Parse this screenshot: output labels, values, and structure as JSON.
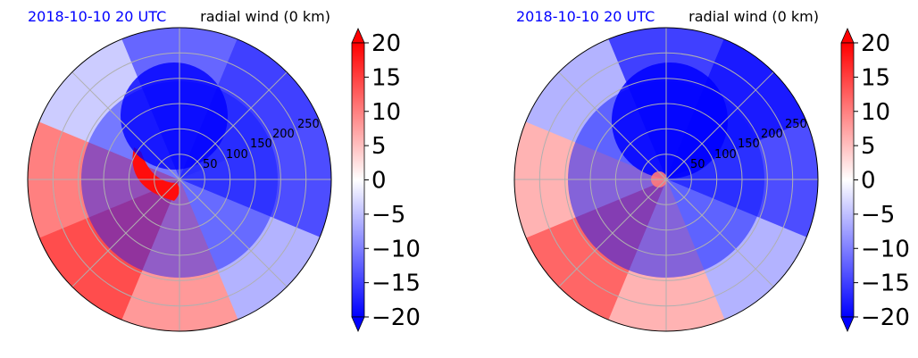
{
  "chart_data": [
    {
      "type": "heatmap",
      "projection": "polar",
      "title_left": "2018-10-10 20 UTC",
      "title_right": "radial wind (0 km)",
      "radial_ticks": [
        "50",
        "100",
        "150",
        "200",
        "250"
      ],
      "radial_tick_values": [
        50,
        100,
        150,
        200,
        250
      ],
      "rlim": [
        0,
        300
      ],
      "angular_grid_deg": [
        0,
        45,
        90,
        135,
        180,
        225,
        270,
        315
      ],
      "grid": true,
      "colormap": "bwr",
      "colorbar": {
        "vmin": -20,
        "vmax": 20,
        "extend": "both",
        "ticks": [
          20,
          15,
          10,
          5,
          0,
          -5,
          -10,
          -15,
          -20
        ],
        "tick_labels": [
          "20",
          "15",
          "10",
          "5",
          "0",
          "−5",
          "−10",
          "−15",
          "−20"
        ]
      },
      "field": {
        "sector_values": [
          {
            "direction": "north",
            "value": -12
          },
          {
            "direction": "north-east",
            "value": -15
          },
          {
            "direction": "east",
            "value": -14
          },
          {
            "direction": "south-east",
            "value": -6
          },
          {
            "direction": "south",
            "value": 8
          },
          {
            "direction": "south-west",
            "value": 14
          },
          {
            "direction": "west",
            "value": 10
          },
          {
            "direction": "north-west",
            "value": -4
          }
        ],
        "features": [
          {
            "name": "inner-positive-arc",
            "value": 20
          },
          {
            "name": "core-negative",
            "value": -20
          }
        ]
      }
    },
    {
      "type": "heatmap",
      "projection": "polar",
      "title_left": "2018-10-10 20 UTC",
      "title_right": "radial wind (0 km)",
      "radial_ticks": [
        "50",
        "100",
        "150",
        "200",
        "250"
      ],
      "radial_tick_values": [
        50,
        100,
        150,
        200,
        250
      ],
      "rlim": [
        0,
        300
      ],
      "angular_grid_deg": [
        0,
        45,
        90,
        135,
        180,
        225,
        270,
        315
      ],
      "grid": true,
      "colormap": "bwr",
      "colorbar": {
        "vmin": -20,
        "vmax": 20,
        "extend": "both",
        "ticks": [
          20,
          15,
          10,
          5,
          0,
          -5,
          -10,
          -15,
          -20
        ],
        "tick_labels": [
          "20",
          "15",
          "10",
          "5",
          "0",
          "−5",
          "−10",
          "−15",
          "−20"
        ]
      },
      "field": {
        "sector_values": [
          {
            "direction": "north",
            "value": -15
          },
          {
            "direction": "north-east",
            "value": -18
          },
          {
            "direction": "east",
            "value": -14
          },
          {
            "direction": "south-east",
            "value": -6
          },
          {
            "direction": "south",
            "value": 6
          },
          {
            "direction": "south-west",
            "value": 12
          },
          {
            "direction": "west",
            "value": 6
          },
          {
            "direction": "north-west",
            "value": -6
          }
        ],
        "features": [
          {
            "name": "inner-positive-spot",
            "value": 10
          },
          {
            "name": "core-negative",
            "value": -20
          }
        ]
      }
    }
  ]
}
